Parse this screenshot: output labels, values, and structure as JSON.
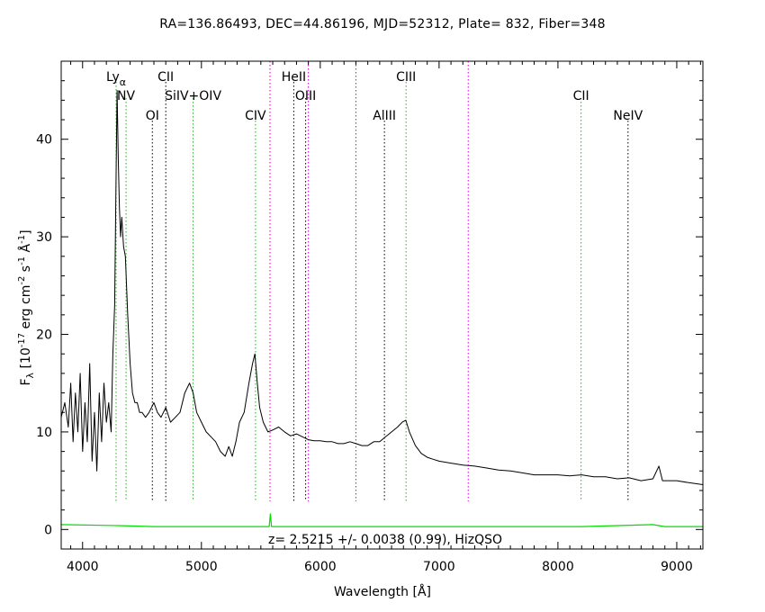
{
  "chart_data": {
    "type": "line",
    "title": "RA=136.86493, DEC=44.86196, MJD=52312, Plate=  832, Fiber=348",
    "xlabel": "Wavelength [Å]",
    "ylabel": {
      "main": "F",
      "sub": "λ",
      "text": " [10",
      "exp1": "-17",
      "t2": " erg cm",
      "exp2": "-2",
      "t3": " s",
      "exp3": "-1",
      "t4": " Å",
      "exp4": "-1",
      "t5": "]"
    },
    "xlim": [
      3820,
      9220
    ],
    "ylim": [
      -2,
      48
    ],
    "xticks": [
      4000,
      5000,
      6000,
      7000,
      8000,
      9000
    ],
    "xtick_labels": [
      "4000",
      "5000",
      "6000",
      "7000",
      "8000",
      "9000"
    ],
    "yticks": [
      0,
      10,
      20,
      30,
      40
    ],
    "ytick_labels": [
      "0",
      "10",
      "20",
      "30",
      "40"
    ],
    "grid": false,
    "annotation": "z=  2.5215 +/-  0.0038 (0.99), HizQSO",
    "colors": {
      "spectrum": "#000000",
      "error": "#00dd00",
      "green_line": "#00cc00",
      "black_line": "#000000",
      "magenta_line": "#cc00cc"
    },
    "lines": [
      {
        "label": "Ly",
        "sub": "α",
        "x": 4282,
        "color": "green",
        "row": 1
      },
      {
        "label": "NV",
        "x": 4366,
        "color": "green",
        "row": 2
      },
      {
        "label": "OI",
        "x": 4587,
        "color": "black",
        "row": 3
      },
      {
        "label": "CII",
        "x": 4700,
        "color": "black",
        "row": 1
      },
      {
        "label": "SiIV+OIV",
        "x": 4930,
        "color": "green",
        "row": 2
      },
      {
        "label": "CIV",
        "x": 5455,
        "color": "green",
        "row": 3
      },
      {
        "label": "",
        "x": 5577,
        "color": "magenta",
        "row": 0
      },
      {
        "label": "HeII",
        "x": 5777,
        "color": "black",
        "row": 1
      },
      {
        "label": "OIII",
        "x": 5877,
        "color": "black",
        "row": 2
      },
      {
        "label": "",
        "x": 5900,
        "color": "magenta",
        "row": 0
      },
      {
        "label": "",
        "x": 6300,
        "color": "magenta",
        "row": 0
      },
      {
        "label": "AlIII",
        "x": 6540,
        "color": "black",
        "row": 3
      },
      {
        "label": "CIII",
        "x": 6722,
        "color": "green",
        "row": 1
      },
      {
        "label": "",
        "x": 7245,
        "color": "magenta",
        "row": 0
      },
      {
        "label": "CII",
        "x": 8195,
        "color": "green",
        "row": 2
      },
      {
        "label": "NeIV",
        "x": 8590,
        "color": "black",
        "row": 3
      }
    ],
    "series": [
      {
        "x": [
          3820,
          3850,
          3880,
          3900,
          3920,
          3940,
          3960,
          3980,
          4000,
          4020,
          4040,
          4060,
          4080,
          4100,
          4120,
          4140,
          4160,
          4180,
          4200,
          4220,
          4240,
          4255,
          4270,
          4280,
          4290,
          4300,
          4310,
          4320,
          4330,
          4345,
          4360,
          4380,
          4400,
          4420,
          4440,
          4460,
          4480,
          4500,
          4530,
          4560,
          4600,
          4630,
          4660,
          4700,
          4740,
          4780,
          4820,
          4860,
          4900,
          4930,
          4960,
          5000,
          5040,
          5080,
          5120,
          5160,
          5200,
          5230,
          5260,
          5290,
          5320,
          5360,
          5400,
          5430,
          5450,
          5470,
          5490,
          5520,
          5560,
          5600,
          5650,
          5700,
          5750,
          5800,
          5850,
          5900,
          5950,
          6000,
          6050,
          6100,
          6150,
          6200,
          6250,
          6300,
          6350,
          6400,
          6450,
          6500,
          6550,
          6600,
          6650,
          6690,
          6720,
          6750,
          6800,
          6850,
          6900,
          6950,
          7000,
          7100,
          7200,
          7300,
          7400,
          7500,
          7600,
          7700,
          7800,
          7900,
          8000,
          8100,
          8200,
          8300,
          8400,
          8500,
          8600,
          8700,
          8800,
          8850,
          8880,
          8900,
          9000,
          9100,
          9220
        ],
        "y": [
          11.5,
          13,
          10.5,
          15,
          9,
          14,
          10,
          16,
          8,
          13,
          9,
          17,
          7,
          12,
          6,
          14,
          9,
          15,
          11,
          13,
          10,
          18,
          23,
          34,
          45,
          38,
          33,
          30,
          32,
          29,
          28,
          22,
          17,
          14,
          13,
          13,
          12,
          12,
          11.5,
          12,
          13,
          12,
          11.5,
          12.5,
          11,
          11.5,
          12,
          14,
          15,
          14,
          12,
          11,
          10,
          9.5,
          9,
          8,
          7.5,
          8.5,
          7.5,
          9,
          11,
          12,
          15,
          17,
          18,
          15,
          12.5,
          11,
          10,
          10.2,
          10.5,
          10,
          9.6,
          9.8,
          9.5,
          9.2,
          9.1,
          9.1,
          9,
          9,
          8.8,
          8.8,
          9,
          8.8,
          8.6,
          8.6,
          9,
          9,
          9.5,
          10,
          10.5,
          11,
          11.2,
          10,
          8.6,
          7.8,
          7.4,
          7.2,
          7,
          6.8,
          6.6,
          6.5,
          6.3,
          6.1,
          6.0,
          5.8,
          5.6,
          5.6,
          5.6,
          5.5,
          5.6,
          5.4,
          5.4,
          5.2,
          5.3,
          5.0,
          5.2,
          6.5,
          5.0,
          5.0,
          5.0,
          4.8,
          4.6
        ]
      },
      {
        "x": [
          3820,
          4300,
          4600,
          5000,
          5570,
          5580,
          5590,
          5600,
          6000,
          7000,
          8200,
          8800,
          8900,
          9220
        ],
        "y": [
          0.5,
          0.4,
          0.3,
          0.3,
          0.3,
          1.6,
          0.3,
          0.3,
          0.3,
          0.3,
          0.3,
          0.5,
          0.3,
          0.3
        ]
      }
    ]
  }
}
